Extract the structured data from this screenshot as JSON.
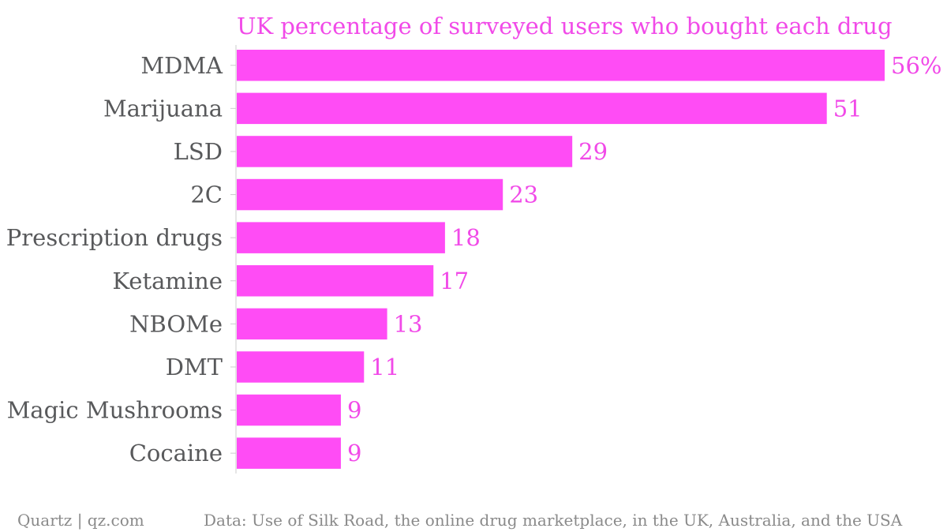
{
  "chart_data": {
    "type": "bar",
    "orientation": "horizontal",
    "title": "UK percentage of surveyed users who bought each drug",
    "categories": [
      "MDMA",
      "Marijuana",
      "LSD",
      "2C",
      "Prescription drugs",
      "Ketamine",
      "NBOMe",
      "DMT",
      "Magic Mushrooms",
      "Cocaine"
    ],
    "values": [
      56,
      51,
      29,
      23,
      18,
      17,
      13,
      11,
      9,
      9
    ],
    "value_labels": [
      "56%",
      "51",
      "29",
      "23",
      "18",
      "17",
      "13",
      "11",
      "9",
      "9"
    ],
    "xlim": [
      0,
      56
    ],
    "grid": false,
    "legend": "none",
    "bar_color": "#ff4cf5",
    "label_color": "#f14ae8",
    "axis_color": "#cccccc"
  },
  "footer": {
    "brand": "Quartz | qz.com",
    "source": "Data: Use of Silk Road, the online drug marketplace, in the UK, Australia, and the USA"
  }
}
